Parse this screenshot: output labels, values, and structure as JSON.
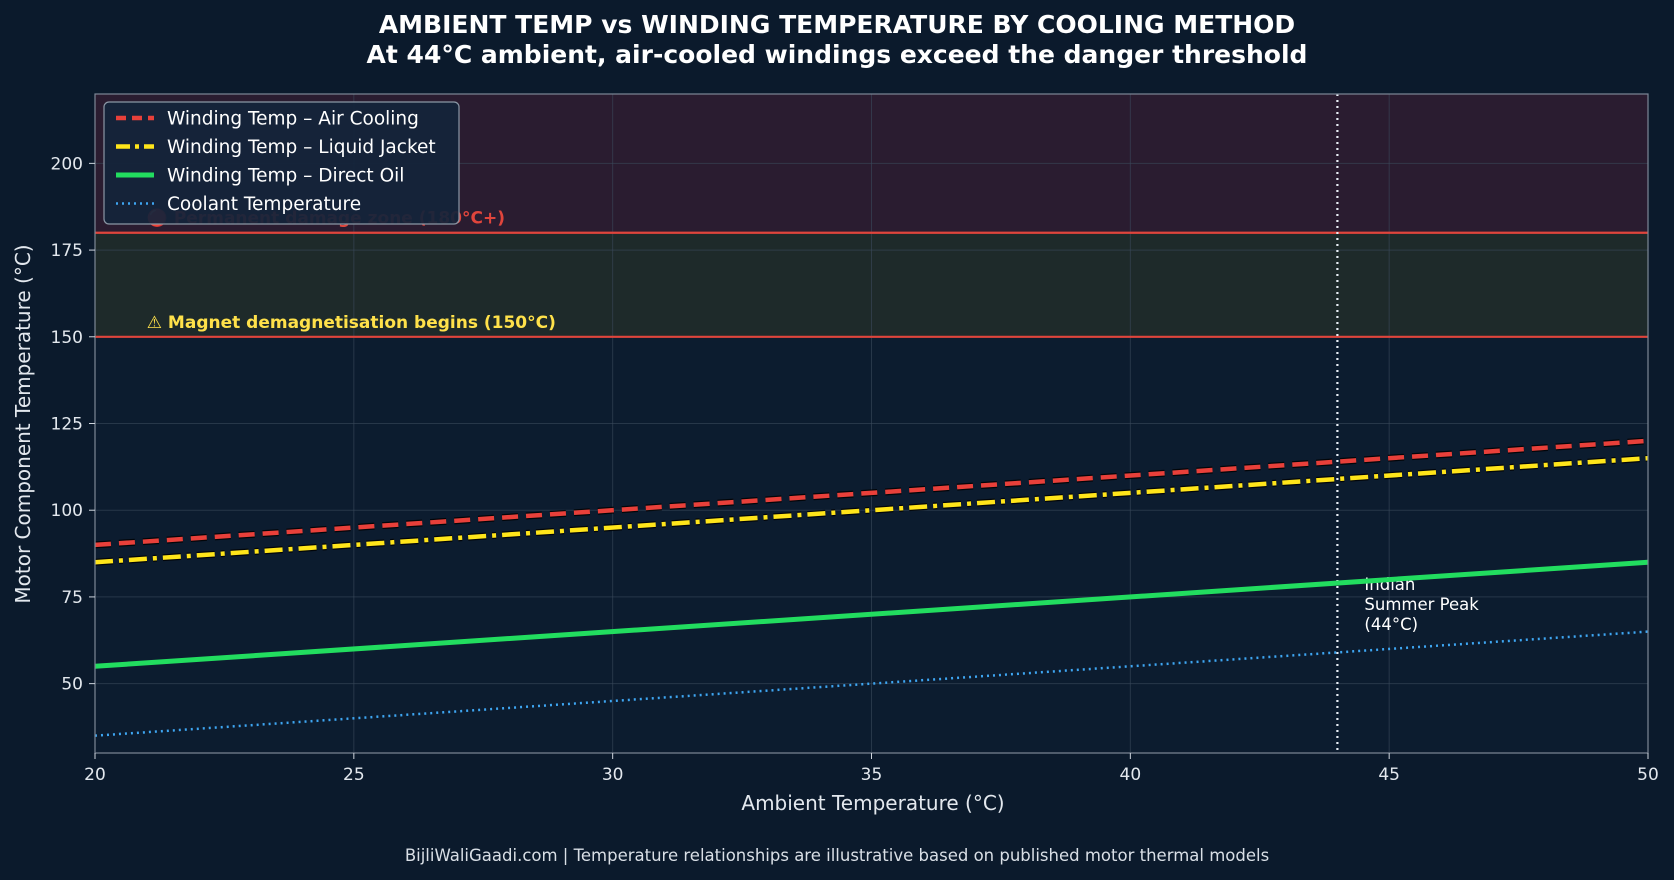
{
  "title": "AMBIENT TEMP vs WINDING TEMPERATURE BY COOLING METHOD",
  "subtitle": "At 44°C ambient, air-cooled windings exceed the danger threshold",
  "footer": "BijliWaliGaadi.com | Temperature relationships are illustrative based on published motor thermal models",
  "colors": {
    "background": "#0b1a2c",
    "plot_background": "#0c1c2f",
    "damage_zone": "#2a1c30",
    "demag_zone": "#1e2a2a",
    "threshold_line": "#e0453c",
    "air": "#e8403a",
    "liquid": "#ffe51a",
    "oil": "#22dd5f",
    "coolant": "#3ea6f2",
    "annotation_text": "#ffe14a"
  },
  "chart_data": {
    "type": "line",
    "title": "AMBIENT TEMP vs WINDING TEMPERATURE BY COOLING METHOD",
    "subtitle": "At 44°C ambient, air-cooled windings exceed the danger threshold",
    "xlabel": "Ambient Temperature (°C)",
    "ylabel": "Motor Component Temperature (°C)",
    "xlim": [
      20,
      50
    ],
    "ylim": [
      30,
      220
    ],
    "xticks": [
      20,
      25,
      30,
      35,
      40,
      45,
      50
    ],
    "yticks": [
      50,
      75,
      100,
      125,
      150,
      175,
      200
    ],
    "grid": true,
    "legend_position": "top-left",
    "x": [
      20,
      50
    ],
    "series": [
      {
        "name": "Winding Temp – Air Cooling",
        "values": [
          90,
          120
        ],
        "style": "dashed",
        "color": "#e8403a"
      },
      {
        "name": "Winding Temp – Liquid Jacket",
        "values": [
          85,
          115
        ],
        "style": "dashdot",
        "color": "#ffe51a"
      },
      {
        "name": "Winding Temp – Direct Oil",
        "values": [
          55,
          85
        ],
        "style": "solid",
        "color": "#22dd5f"
      },
      {
        "name": "Coolant Temperature",
        "values": [
          35,
          65
        ],
        "style": "dotted",
        "color": "#3ea6f2"
      }
    ],
    "bands": [
      {
        "from": 180,
        "to": 220,
        "label": "🔴 Permanent damage zone (180°C+)",
        "color": "#2a1c30"
      },
      {
        "from": 150,
        "to": 180,
        "label": "⚠ Magnet demagnetisation begins (150°C)",
        "color": "#1e2a2a"
      }
    ],
    "hlines": [
      150,
      180
    ],
    "vline": {
      "x": 44,
      "label_lines": [
        "Indian",
        "Summer Peak",
        "(44°C)"
      ]
    }
  }
}
